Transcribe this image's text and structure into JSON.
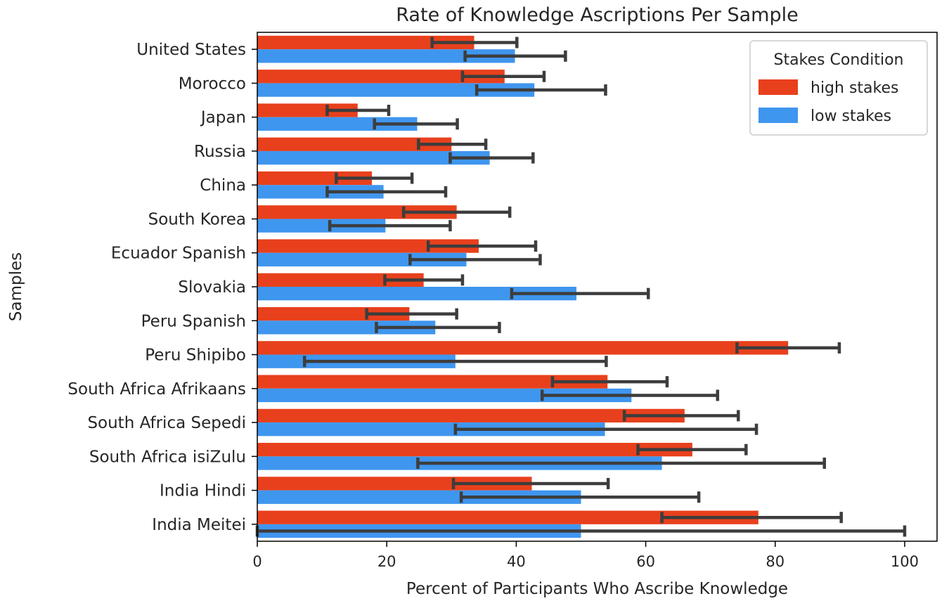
{
  "chart_data": {
    "type": "bar",
    "orientation": "horizontal",
    "title": "Rate of Knowledge Ascriptions Per Sample",
    "xlabel": "Percent of Participants Who Ascribe Knowledge",
    "ylabel": "Samples",
    "xlim": [
      0,
      105
    ],
    "xticks": [
      0,
      20,
      40,
      60,
      80,
      100
    ],
    "grid": false,
    "legend": {
      "title": "Stakes Condition",
      "placement": "top-right"
    },
    "categories": [
      "United States",
      "Morocco",
      "Japan",
      "Russia",
      "China",
      "South Korea",
      "Ecuador Spanish",
      "Slovakia",
      "Peru Spanish",
      "Peru Shipibo",
      "South Africa Afrikaans",
      "South Africa Sepedi",
      "South Africa isiZulu",
      "India Hindi",
      "India Meitei"
    ],
    "series": [
      {
        "name": "high stakes",
        "color": "#e8401c",
        "values": [
          33.5,
          38.2,
          15.5,
          30.0,
          17.7,
          30.8,
          34.2,
          25.7,
          23.5,
          82.0,
          54.1,
          66.0,
          67.2,
          42.4,
          77.4
        ],
        "ci_low": [
          27.0,
          31.7,
          10.8,
          24.9,
          12.2,
          22.6,
          26.4,
          19.7,
          16.9,
          74.1,
          45.6,
          56.7,
          58.8,
          30.3,
          62.5
        ],
        "ci_high": [
          40.1,
          44.3,
          20.3,
          35.3,
          23.9,
          39.0,
          43.0,
          31.7,
          30.8,
          89.9,
          63.3,
          74.3,
          75.5,
          54.2,
          90.2
        ]
      },
      {
        "name": "low stakes",
        "color": "#3f96ee",
        "values": [
          39.8,
          42.8,
          24.7,
          35.9,
          19.5,
          19.8,
          32.3,
          49.3,
          27.5,
          30.6,
          57.8,
          53.7,
          62.5,
          50.0,
          50.0
        ],
        "ci_low": [
          32.1,
          33.9,
          18.1,
          29.8,
          10.8,
          11.2,
          23.6,
          39.3,
          18.4,
          7.3,
          44.0,
          30.6,
          24.8,
          31.5,
          0.0
        ],
        "ci_high": [
          47.6,
          53.8,
          30.9,
          42.6,
          29.1,
          29.8,
          43.7,
          60.4,
          37.4,
          53.9,
          71.1,
          77.1,
          87.6,
          68.2,
          100.0
        ]
      }
    ]
  }
}
